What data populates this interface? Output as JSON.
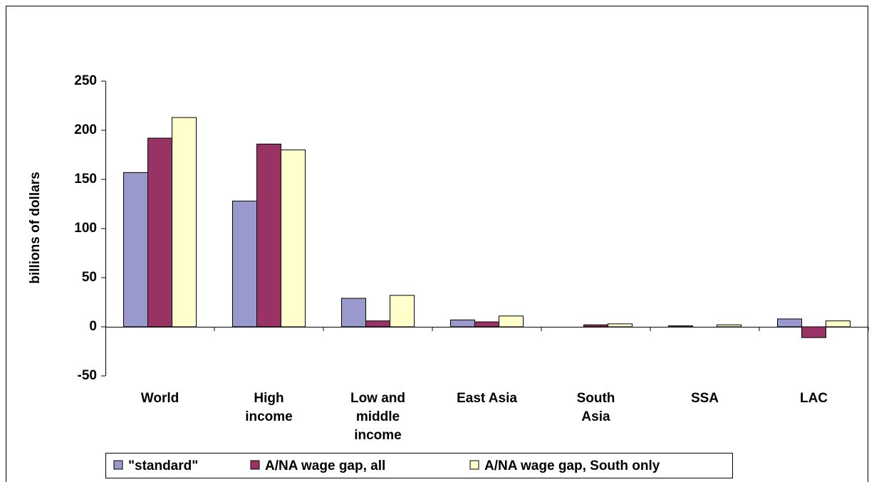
{
  "chart_data": {
    "type": "bar",
    "y_label": "billions of dollars",
    "categories": [
      "World",
      "High\nincome",
      "Low and\nmiddle\nincome",
      "East Asia",
      "South\nAsia",
      "SSA",
      "LAC"
    ],
    "series": [
      {
        "name": "\"standard\"",
        "color": "#9999cc",
        "values": [
          157,
          128,
          29,
          7,
          0,
          1,
          8
        ]
      },
      {
        "name": "A/NA wage gap, all",
        "color": "#993366",
        "values": [
          192,
          186,
          6,
          5,
          2,
          0,
          -11
        ]
      },
      {
        "name": "A/NA wage gap, South only",
        "color": "#ffffcc",
        "values": [
          213,
          180,
          32,
          11,
          3,
          2,
          6
        ]
      }
    ],
    "ylim": [
      -50,
      250
    ],
    "yticks": [
      -50,
      0,
      50,
      100,
      150,
      200,
      250
    ]
  }
}
